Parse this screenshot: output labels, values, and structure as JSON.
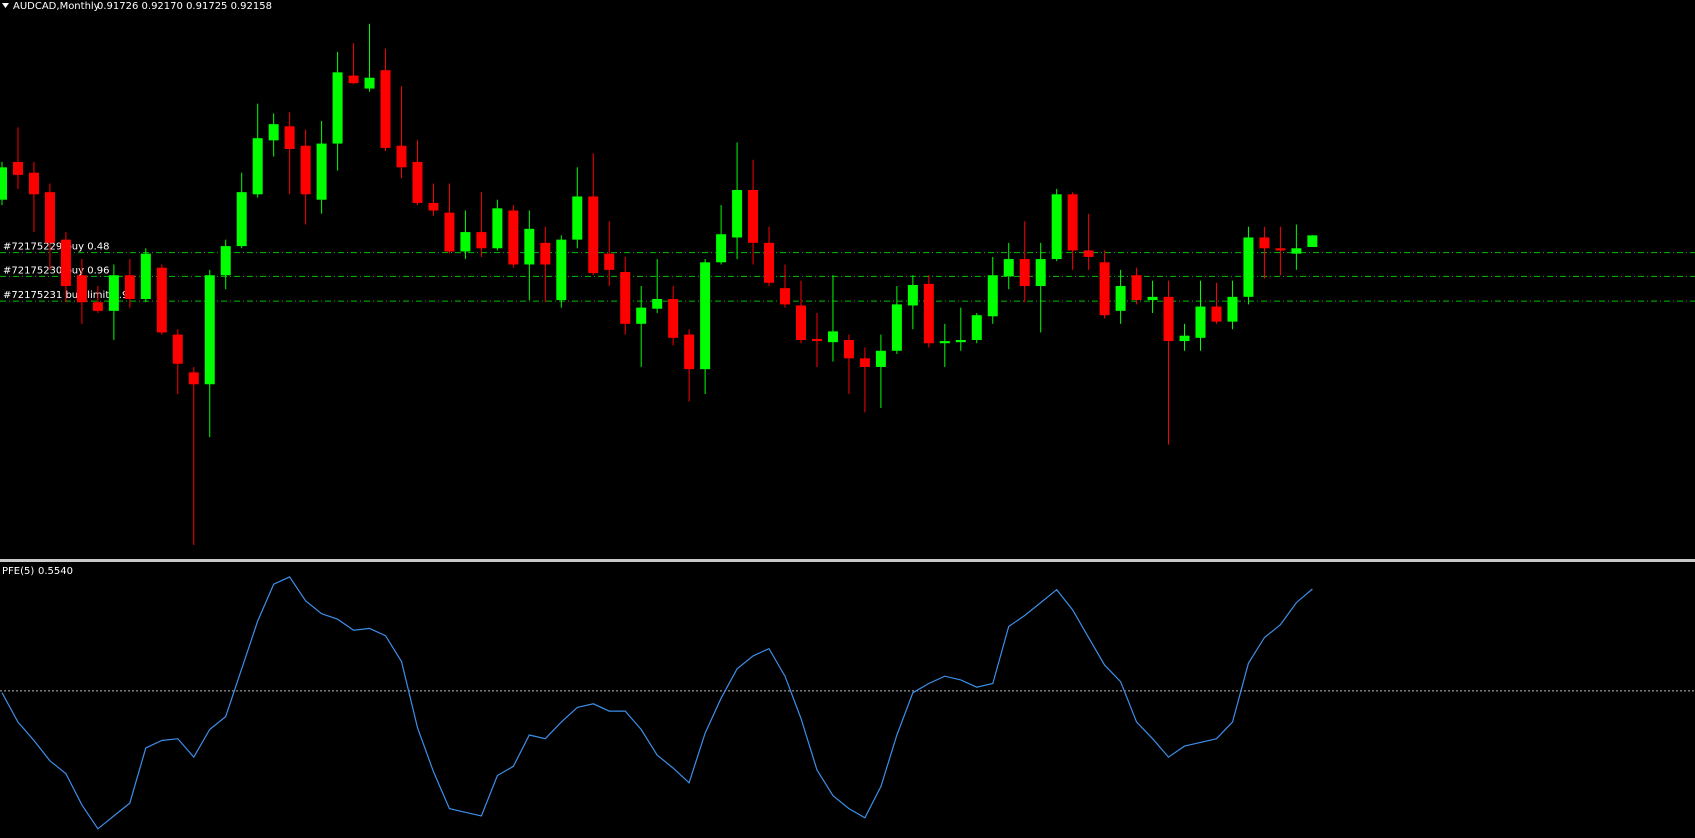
{
  "chart_data": [
    {
      "type": "candlestick",
      "title": "AUDCAD,Monthly",
      "subtitle": "0.91726 0.92170 0.91725 0.92158",
      "up_color": "#00ff00",
      "down_color": "#ff0000",
      "ylim": [
        0.802,
        1.004
      ],
      "open": [
        0.9348,
        0.9488,
        0.9448,
        0.9376,
        0.92,
        0.9068,
        0.8968,
        0.8936,
        0.9068,
        0.898,
        0.9096,
        0.8848,
        0.8708,
        0.8664,
        0.9068,
        0.9176,
        0.9368,
        0.9568,
        0.962,
        0.9548,
        0.9348,
        0.9556,
        0.9808,
        0.976,
        0.9828,
        0.9548,
        0.9488,
        0.9336,
        0.93,
        0.9156,
        0.9228,
        0.9168,
        0.9308,
        0.9108,
        0.9188,
        0.8976,
        0.92,
        0.936,
        0.9148,
        0.908,
        0.8888,
        0.8944,
        0.898,
        0.8848,
        0.872,
        0.9116,
        0.9208,
        0.9384,
        0.9188,
        0.902,
        0.8956,
        0.8832,
        0.882,
        0.8828,
        0.876,
        0.8728,
        0.8788,
        0.8956,
        0.9036,
        0.8816,
        0.882,
        0.8828,
        0.8916,
        0.9064,
        0.9128,
        0.9028,
        0.9128,
        0.9368,
        0.916,
        0.9116,
        0.8936,
        0.9068,
        0.8976,
        0.8988,
        0.8824,
        0.8836,
        0.8952,
        0.8896,
        0.8988,
        0.9208,
        0.9168,
        0.9148,
        0.91726
      ],
      "high": [
        0.9488,
        0.9616,
        0.9488,
        0.9408,
        0.9228,
        0.9128,
        0.9028,
        0.9108,
        0.9128,
        0.9168,
        0.9108,
        0.8868,
        0.8728,
        0.9088,
        0.92,
        0.9448,
        0.9704,
        0.9668,
        0.9672,
        0.9608,
        0.964,
        0.9896,
        0.9928,
        1.0,
        0.9908,
        0.9768,
        0.9568,
        0.9408,
        0.9408,
        0.9308,
        0.9376,
        0.9348,
        0.9328,
        0.9308,
        0.9248,
        0.9216,
        0.9468,
        0.952,
        0.9268,
        0.9136,
        0.9028,
        0.9128,
        0.9028,
        0.8868,
        0.9128,
        0.9328,
        0.956,
        0.9496,
        0.9248,
        0.9108,
        0.9048,
        0.8928,
        0.9068,
        0.8848,
        0.88,
        0.8848,
        0.9028,
        0.9068,
        0.9068,
        0.8888,
        0.8948,
        0.8928,
        0.9136,
        0.9188,
        0.9268,
        0.9188,
        0.9388,
        0.9376,
        0.9296,
        0.916,
        0.9088,
        0.9096,
        0.9048,
        0.9048,
        0.8888,
        0.9048,
        0.904,
        0.9048,
        0.9248,
        0.9248,
        0.9248,
        0.9256,
        0.9217
      ],
      "low": [
        0.9328,
        0.9388,
        0.9228,
        0.9088,
        0.8968,
        0.8888,
        0.8928,
        0.8828,
        0.8948,
        0.8968,
        0.8848,
        0.8628,
        0.8068,
        0.8468,
        0.9016,
        0.9168,
        0.9356,
        0.9508,
        0.9368,
        0.9256,
        0.9296,
        0.9456,
        0.9776,
        0.9748,
        0.9528,
        0.9428,
        0.9328,
        0.9288,
        0.9148,
        0.9128,
        0.9136,
        0.916,
        0.9096,
        0.8976,
        0.8968,
        0.8948,
        0.9168,
        0.9068,
        0.9028,
        0.8848,
        0.8728,
        0.8928,
        0.8808,
        0.86,
        0.8628,
        0.9108,
        0.9128,
        0.9108,
        0.9028,
        0.8948,
        0.8816,
        0.8728,
        0.8748,
        0.8628,
        0.856,
        0.8576,
        0.8776,
        0.8868,
        0.88,
        0.8728,
        0.8788,
        0.8816,
        0.8888,
        0.9016,
        0.8968,
        0.8856,
        0.912,
        0.9088,
        0.9088,
        0.8908,
        0.8888,
        0.896,
        0.8928,
        0.844,
        0.8788,
        0.8788,
        0.8888,
        0.8868,
        0.896,
        0.9056,
        0.9068,
        0.9088,
        0.91725
      ],
      "close": [
        0.9468,
        0.944,
        0.9368,
        0.9188,
        0.9028,
        0.8968,
        0.8936,
        0.9068,
        0.898,
        0.9148,
        0.8856,
        0.874,
        0.8664,
        0.9068,
        0.9176,
        0.9376,
        0.9576,
        0.9628,
        0.9536,
        0.9368,
        0.9556,
        0.982,
        0.978,
        0.98,
        0.954,
        0.9468,
        0.9336,
        0.9308,
        0.9156,
        0.9228,
        0.9168,
        0.9316,
        0.9108,
        0.924,
        0.9108,
        0.92,
        0.936,
        0.9076,
        0.9088,
        0.8888,
        0.8948,
        0.898,
        0.8836,
        0.872,
        0.9116,
        0.922,
        0.9384,
        0.9188,
        0.904,
        0.896,
        0.8828,
        0.8824,
        0.886,
        0.876,
        0.8728,
        0.8788,
        0.896,
        0.9032,
        0.8816,
        0.8824,
        0.8828,
        0.892,
        0.9068,
        0.9128,
        0.9028,
        0.9128,
        0.9368,
        0.916,
        0.9136,
        0.892,
        0.9028,
        0.8976,
        0.8988,
        0.8824,
        0.8844,
        0.8952,
        0.8896,
        0.8988,
        0.9208,
        0.9168,
        0.916,
        0.9168,
        0.92158
      ],
      "orders": [
        {
          "label": "#72175229 buy 0.48",
          "price": 0.9152
        },
        {
          "label": "#72175230 buy 0.96",
          "price": 0.9064
        },
        {
          "label": "#72175231 buy limit 1.92",
          "price": 0.8972
        }
      ],
      "order_color": "#00c000"
    },
    {
      "type": "line",
      "title": "PFE(5)",
      "subtitle": "0.5540",
      "ylim": [
        -0.8,
        0.69
      ],
      "level": 0,
      "series": [
        {
          "name": "PFE(5)",
          "color": "#3d8ee8",
          "values": [
            -0.01,
            -0.17,
            -0.27,
            -0.38,
            -0.45,
            -0.62,
            -0.75,
            -0.68,
            -0.61,
            -0.31,
            -0.27,
            -0.26,
            -0.36,
            -0.21,
            -0.14,
            0.12,
            0.38,
            0.58,
            0.62,
            0.49,
            0.42,
            0.39,
            0.33,
            0.34,
            0.3,
            0.16,
            -0.2,
            -0.44,
            -0.64,
            -0.66,
            -0.68,
            -0.46,
            -0.41,
            -0.24,
            -0.26,
            -0.17,
            -0.09,
            -0.07,
            -0.11,
            -0.11,
            -0.21,
            -0.35,
            -0.42,
            -0.5,
            -0.23,
            -0.04,
            0.12,
            0.19,
            0.23,
            0.08,
            -0.15,
            -0.43,
            -0.57,
            -0.64,
            -0.69,
            -0.52,
            -0.24,
            -0.01,
            0.04,
            0.08,
            0.06,
            0.02,
            0.04,
            0.35,
            0.41,
            0.48,
            0.55,
            0.44,
            0.29,
            0.14,
            0.05,
            -0.17,
            -0.26,
            -0.36,
            -0.3,
            -0.28,
            -0.26,
            -0.17,
            0.15,
            0.29,
            0.36,
            0.48,
            0.554
          ]
        }
      ]
    }
  ]
}
